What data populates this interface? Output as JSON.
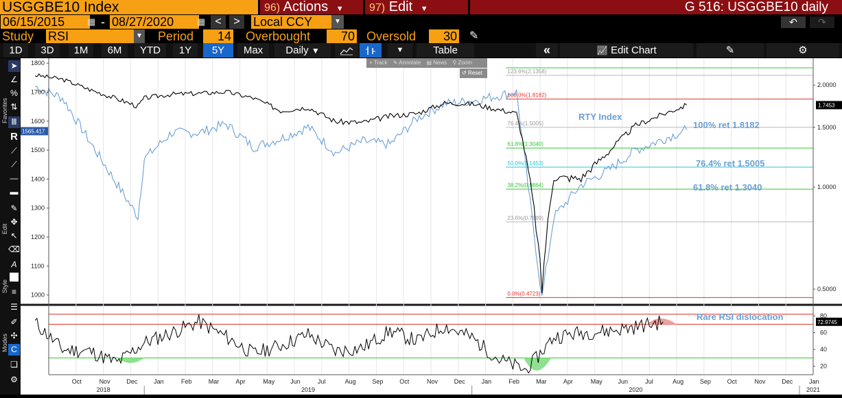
{
  "header": {
    "ticker": "USGGBE10 Index",
    "actions_num": "96)",
    "actions_label": "Actions",
    "edit_num": "97)",
    "edit_label": "Edit",
    "title": "G 516: USGGBE10 daily"
  },
  "dates": {
    "start": "06/15/2015",
    "sep": "-",
    "end": "08/27/2020",
    "currency": "Local CCY"
  },
  "study": {
    "label": "Study",
    "value": "RSI",
    "period_label": "Period",
    "period_value": "14",
    "overbought_label": "Overbought",
    "overbought_value": "70",
    "oversold_label": "Oversold",
    "oversold_value": "30"
  },
  "toolbar": {
    "ranges": [
      "1D",
      "3D",
      "1M",
      "6M",
      "YTD",
      "1Y",
      "5Y",
      "Max"
    ],
    "active_range": "5Y",
    "frequency": "Daily",
    "table_label": "Table",
    "edit_chart_label": "Edit Chart"
  },
  "overlay_menu": {
    "track": "Track",
    "annotate": "Annotate",
    "news": "News",
    "zoom": "Zoom",
    "reset": "Reset"
  },
  "side_labels": {
    "favorites": "Favorites",
    "edit": "Edit",
    "style": "Style",
    "modes": "Modes"
  },
  "chart_data": [
    {
      "type": "line",
      "series": [
        {
          "name": "RTY Index",
          "axis": "left",
          "color": "#6a9fd4",
          "x": [
            "2018-09",
            "2018-10",
            "2018-11",
            "2018-12-24",
            "2019-01",
            "2019-02",
            "2019-03",
            "2019-04",
            "2019-05",
            "2019-06",
            "2019-07",
            "2019-08",
            "2019-09",
            "2019-10",
            "2019-11",
            "2019-12",
            "2020-01",
            "2020-02-20",
            "2020-03-18",
            "2020-04",
            "2020-05",
            "2020-06",
            "2020-07",
            "2020-08-27"
          ],
          "values": [
            1720,
            1680,
            1530,
            1270,
            1470,
            1560,
            1560,
            1590,
            1510,
            1540,
            1580,
            1490,
            1530,
            1520,
            1610,
            1660,
            1670,
            1700,
            990,
            1270,
            1380,
            1430,
            1500,
            1570
          ]
        },
        {
          "name": "USGGBE10",
          "axis": "right",
          "color": "#000000",
          "x": [
            "2018-09",
            "2018-10",
            "2018-11",
            "2018-12-24",
            "2019-01",
            "2019-02",
            "2019-03",
            "2019-04",
            "2019-05",
            "2019-06",
            "2019-07",
            "2019-08",
            "2019-09",
            "2019-10",
            "2019-11",
            "2019-12",
            "2020-01",
            "2020-02-20",
            "2020-03-18",
            "2020-04",
            "2020-05",
            "2020-06",
            "2020-07",
            "2020-08-27"
          ],
          "values": [
            2.14,
            2.08,
            1.94,
            1.73,
            1.83,
            1.88,
            1.89,
            1.91,
            1.83,
            1.68,
            1.72,
            1.56,
            1.55,
            1.62,
            1.65,
            1.77,
            1.76,
            1.65,
            0.5,
            1.07,
            1.06,
            1.27,
            1.52,
            1.7453
          ]
        }
      ],
      "left_axis": {
        "ticks": [
          1000,
          1100,
          1200,
          1300,
          1400,
          1500,
          1600,
          1700,
          1800
        ],
        "ylim": [
          985,
          1810
        ],
        "current_label": "1565.417"
      },
      "right_axis": {
        "ticks": [
          "0.5000",
          "1.0000",
          "1.5000",
          "2.0000"
        ],
        "current_label": "1.7453",
        "scale": "log"
      },
      "fib_levels": [
        {
          "label": "123.6%(2.1358)",
          "value": 2.1358,
          "color": "#b8b8b8"
        },
        {
          "label": "100.0%(1.8182)",
          "value": 1.8182,
          "color": "#e0302a"
        },
        {
          "label": "76.4%(1.5005)",
          "value": 1.5005,
          "color": "#b8b8b8"
        },
        {
          "label": "61.8%(1.3040)",
          "value": 1.304,
          "color": "#2fca2f"
        },
        {
          "label": "50.0%(1.1453)",
          "value": 1.1453,
          "color": "#21c8d8"
        },
        {
          "label": "38.2%(0.9864)",
          "value": 0.9864,
          "color": "#2fca2f"
        },
        {
          "label": "23.6%(0.7899)",
          "value": 0.7899,
          "color": "#b8b8b8"
        },
        {
          "label": "0.0%(0.4723)",
          "value": 0.4723,
          "color": "#e0302a"
        }
      ],
      "annotations": [
        {
          "text": "RTY Index"
        },
        {
          "text": "100% ret 1.8182"
        },
        {
          "text": "76.4% ret 1.5005"
        },
        {
          "text": "61.8% ret 1.3040"
        }
      ]
    },
    {
      "type": "line",
      "series": [
        {
          "name": "RSI",
          "color": "#000000",
          "x": [
            "2018-09",
            "2018-10",
            "2018-11",
            "2018-12",
            "2019-01",
            "2019-02",
            "2019-03",
            "2019-04",
            "2019-05",
            "2019-06",
            "2019-07",
            "2019-08",
            "2019-09",
            "2019-10",
            "2019-11",
            "2019-12",
            "2020-01",
            "2020-02",
            "2020-03",
            "2020-04",
            "2020-05",
            "2020-06",
            "2020-07",
            "2020-08"
          ],
          "values": [
            72,
            40,
            38,
            24,
            48,
            60,
            73,
            55,
            35,
            45,
            58,
            38,
            42,
            62,
            50,
            68,
            54,
            28,
            15,
            55,
            60,
            62,
            67,
            73
          ]
        }
      ],
      "ticks": [
        20,
        40,
        60,
        80
      ],
      "ylim": [
        10,
        85
      ],
      "overbought": 70,
      "oversold": 30,
      "current_label": "72.9745",
      "annotation": "Rare RSI dislocation"
    }
  ],
  "x_axis": {
    "months": [
      "Oct",
      "Nov",
      "Dec",
      "Jan",
      "Feb",
      "Mar",
      "Apr",
      "May",
      "Jun",
      "Jul",
      "Aug",
      "Sep",
      "Oct",
      "Nov",
      "Dec",
      "Jan",
      "Feb",
      "Mar",
      "Apr",
      "May",
      "Jun",
      "Jul",
      "Aug",
      "Sep",
      "Oct",
      "Nov",
      "Dec",
      "Jan"
    ],
    "years": [
      "2018",
      "2019",
      "2020",
      "2021"
    ]
  }
}
